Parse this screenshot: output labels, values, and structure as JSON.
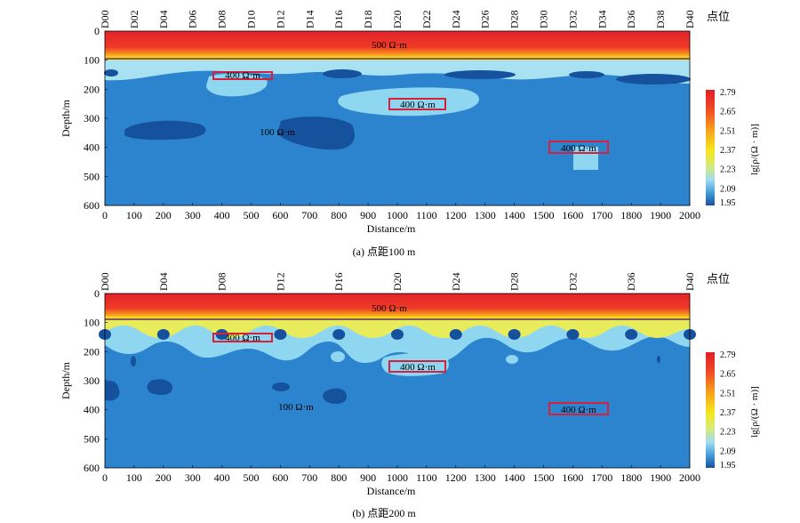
{
  "panels": [
    {
      "caption": "(a) 点距100 m",
      "station_header": "点位",
      "stations": [
        "D00",
        "D02",
        "D04",
        "D06",
        "D08",
        "D10",
        "D12",
        "D14",
        "D16",
        "D18",
        "D20",
        "D22",
        "D24",
        "D26",
        "D28",
        "D30",
        "D32",
        "D34",
        "D36",
        "D38",
        "D40"
      ],
      "ylabel": "Depth/m",
      "xlabel": "Distance/m",
      "yticks": [
        "0",
        "100",
        "200",
        "300",
        "400",
        "500",
        "600"
      ],
      "xticks": [
        "0",
        "100",
        "200",
        "300",
        "400",
        "500",
        "600",
        "700",
        "800",
        "900",
        "1000",
        "1100",
        "1200",
        "1300",
        "1400",
        "1500",
        "1600",
        "1700",
        "1800",
        "1900",
        "2000"
      ],
      "annotations": {
        "top": "500 Ω·m",
        "boxA": "400 Ω·m",
        "boxB": "400 Ω·m",
        "boxC": "400 Ω·m",
        "low": "100 Ω·m"
      },
      "colorbar": {
        "label": "lg[ρ/(Ω · m)]",
        "ticks": [
          "2.79",
          "2.65",
          "2.51",
          "2.37",
          "2.23",
          "2.09",
          "1.95"
        ]
      }
    },
    {
      "caption": "(b) 点距200 m",
      "station_header": "点位",
      "stations": [
        "D00",
        "D04",
        "D08",
        "D12",
        "D16",
        "D20",
        "D24",
        "D28",
        "D32",
        "D36",
        "D40"
      ],
      "ylabel": "Depth/m",
      "xlabel": "Distance/m",
      "yticks": [
        "0",
        "100",
        "200",
        "300",
        "400",
        "500",
        "600"
      ],
      "xticks": [
        "0",
        "100",
        "200",
        "300",
        "400",
        "500",
        "600",
        "700",
        "800",
        "900",
        "1000",
        "1100",
        "1200",
        "1300",
        "1400",
        "1500",
        "1600",
        "1700",
        "1800",
        "1900",
        "2000"
      ],
      "annotations": {
        "top": "500 Ω·m",
        "boxA": "400 Ω·m",
        "boxB": "400 Ω·m",
        "boxC": "400 Ω·m",
        "low": "100 Ω·m"
      },
      "colorbar": {
        "label": "lg[ρ/(Ω · m)]",
        "ticks": [
          "2.79",
          "2.65",
          "2.51",
          "2.37",
          "2.23",
          "2.09",
          "1.95"
        ]
      }
    }
  ],
  "colors": {
    "high": "#e8242b",
    "mid": "#f7e11a",
    "light": "#8fd6f0",
    "base": "#2b84cd",
    "deep": "#15519d",
    "box": "#d8203a"
  }
}
